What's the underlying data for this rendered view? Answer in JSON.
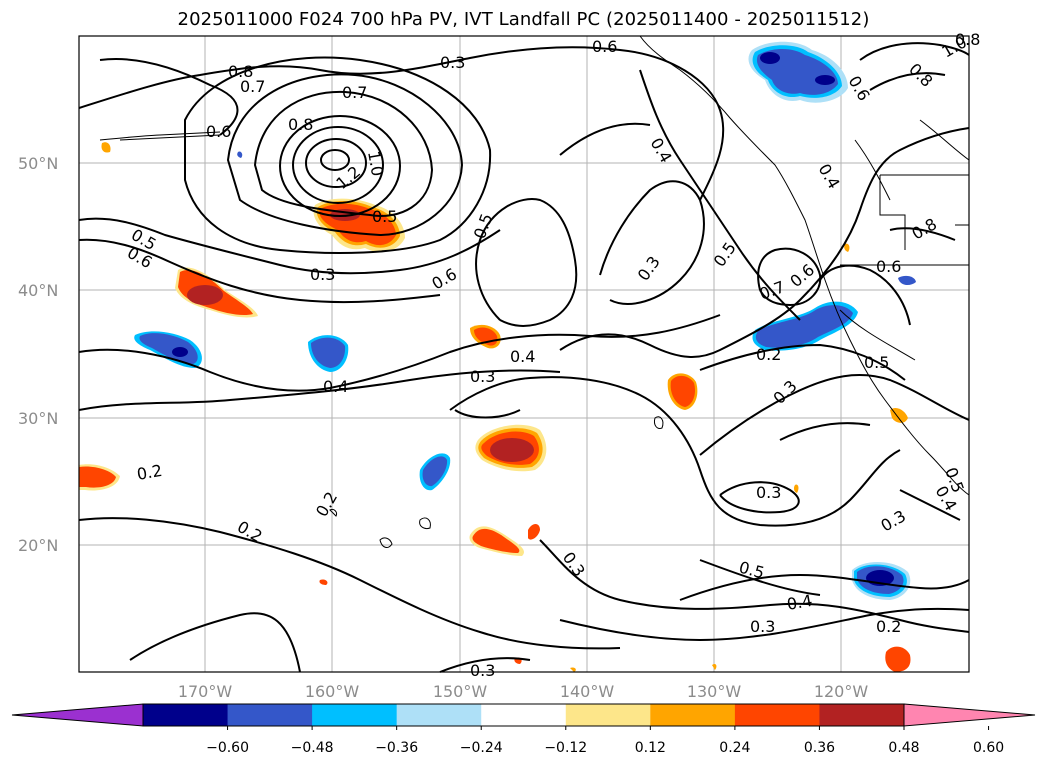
{
  "title": "2025011000 F024 700 hPa PV, IVT Landfall PC (2025011400 - 2025011512)",
  "lat_labels": [
    "50°N",
    "40°N",
    "30°N",
    "20°N"
  ],
  "lon_labels": [
    "170°W",
    "160°W",
    "150°W",
    "140°W",
    "130°W",
    "120°W"
  ],
  "colorbar": {
    "ticks": [
      "−0.60",
      "−0.48",
      "−0.36",
      "−0.24",
      "−0.12",
      "0.12",
      "0.24",
      "0.36",
      "0.48",
      "0.60"
    ],
    "colors": [
      "#9b30d0",
      "#00008b",
      "#3457c9",
      "#00bfff",
      "#aee0f7",
      "#ffffff",
      "#fde68a",
      "#ffa500",
      "#ff4500",
      "#b22222",
      "#ff85b0"
    ]
  },
  "contour_labels": [
    "0.8",
    "0.7",
    "0.6",
    "0.3",
    "0.7",
    "0.8",
    "1.0",
    "1.2",
    "0.5",
    "0.5",
    "0.6",
    "0.3",
    "0.6",
    "0.5",
    "0.4",
    "0.3",
    "0.4",
    "0.5",
    "0.7",
    "0.6",
    "0.2",
    "0.3",
    "0.5",
    "0.6",
    "1.0",
    "0.8",
    "0.6",
    "0.8",
    "0.4",
    "0.4",
    "0.3",
    "0.4",
    "0.2",
    "0.2",
    "0.2",
    "0.3",
    "0.3",
    "0.5",
    "0.4",
    "0.3",
    "0.2",
    "0.3",
    "0.3",
    "0.5",
    "0.6",
    "0.8"
  ]
}
